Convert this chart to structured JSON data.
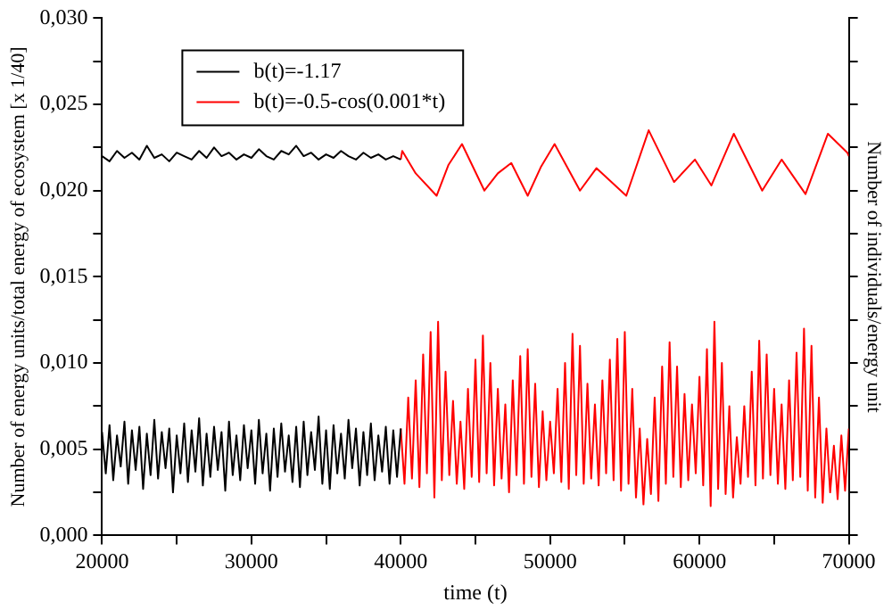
{
  "chart_data": {
    "type": "line",
    "xlabel": "time (t)",
    "ylabel": "Number of energy units/total energy of ecosystem [x 1/40]",
    "y2label": "Number of individuals/energy unit",
    "xlim": [
      20000,
      70000
    ],
    "ylim": [
      0,
      0.03
    ],
    "xticks": [
      20000,
      {
        "value": 25000,
        "label": null
      },
      30000,
      {
        "value": 35000,
        "label": null
      },
      40000,
      {
        "value": 45000,
        "label": null
      },
      50000,
      {
        "value": 55000,
        "label": null
      },
      60000,
      {
        "value": 65000,
        "label": null
      },
      70000
    ],
    "yticks": [
      {
        "value": 0,
        "label": "0,000"
      },
      {
        "value": 0.0025,
        "label": null
      },
      {
        "value": 0.005,
        "label": "0,005"
      },
      {
        "value": 0.0075,
        "label": null
      },
      {
        "value": 0.01,
        "label": "0,010"
      },
      {
        "value": 0.0125,
        "label": null
      },
      {
        "value": 0.015,
        "label": "0,015"
      },
      {
        "value": 0.0175,
        "label": null
      },
      {
        "value": 0.02,
        "label": "0,020"
      },
      {
        "value": 0.0225,
        "label": null
      },
      {
        "value": 0.025,
        "label": "0,025"
      },
      {
        "value": 0.0275,
        "label": null
      },
      {
        "value": 0.03,
        "label": "0,030"
      }
    ],
    "grid": false,
    "legend": "top left",
    "marker": "none",
    "line_style": "solid",
    "series": [
      {
        "name": "b(t)=-1.17",
        "color": "#000000",
        "x": [
          20000,
          20500,
          21000,
          21500,
          22000,
          22500,
          23000,
          23500,
          24000,
          24500,
          25000,
          25500,
          26000,
          26500,
          27000,
          27500,
          28000,
          28500,
          29000,
          29500,
          30000,
          30500,
          31000,
          31500,
          32000,
          32500,
          33000,
          33500,
          34000,
          34500,
          35000,
          35500,
          36000,
          36500,
          37000,
          37500,
          38000,
          38500,
          39000,
          39500,
          40000
        ],
        "values": [
          0.022,
          0.0217,
          0.0223,
          0.0219,
          0.0222,
          0.0218,
          0.0226,
          0.0219,
          0.0221,
          0.0217,
          0.0222,
          0.022,
          0.0218,
          0.0223,
          0.0219,
          0.0225,
          0.022,
          0.0222,
          0.0218,
          0.0221,
          0.0219,
          0.0224,
          0.022,
          0.0218,
          0.0223,
          0.0221,
          0.0226,
          0.022,
          0.0222,
          0.0218,
          0.0221,
          0.0219,
          0.0223,
          0.022,
          0.0218,
          0.0222,
          0.0219,
          0.0221,
          0.0218,
          0.022,
          0.0218
        ]
      },
      {
        "color": "#000000",
        "x": [
          20000,
          20250,
          20500,
          20750,
          21000,
          21250,
          21500,
          21750,
          22000,
          22250,
          22500,
          22750,
          23000,
          23250,
          23500,
          23750,
          24000,
          24250,
          24500,
          24750,
          25000,
          25250,
          25500,
          25750,
          26000,
          26250,
          26500,
          26750,
          27000,
          27250,
          27500,
          27750,
          28000,
          28250,
          28500,
          28750,
          29000,
          29250,
          29500,
          29750,
          30000,
          30250,
          30500,
          30750,
          31000,
          31250,
          31500,
          31750,
          32000,
          32250,
          32500,
          32750,
          33000,
          33250,
          33500,
          33750,
          34000,
          34250,
          34500,
          34750,
          35000,
          35250,
          35500,
          35750,
          36000,
          36250,
          36500,
          36750,
          37000,
          37250,
          37500,
          37750,
          38000,
          38250,
          38500,
          38750,
          39000,
          39250,
          39500,
          39750,
          40000
        ],
        "values": [
          0.006,
          0.0036,
          0.0064,
          0.0032,
          0.0058,
          0.004,
          0.0066,
          0.003,
          0.0061,
          0.0038,
          0.0063,
          0.0027,
          0.0059,
          0.0035,
          0.0067,
          0.0033,
          0.006,
          0.0039,
          0.0062,
          0.0025,
          0.0058,
          0.0036,
          0.0065,
          0.0031,
          0.0061,
          0.0037,
          0.0068,
          0.0029,
          0.0059,
          0.0034,
          0.0063,
          0.0038,
          0.006,
          0.0026,
          0.0066,
          0.0035,
          0.0058,
          0.0032,
          0.0064,
          0.0039,
          0.0061,
          0.003,
          0.0067,
          0.0036,
          0.0059,
          0.0026,
          0.0062,
          0.0034,
          0.0065,
          0.0037,
          0.0058,
          0.0031,
          0.0063,
          0.0028,
          0.0066,
          0.0035,
          0.006,
          0.0038,
          0.0069,
          0.003,
          0.0061,
          0.0027,
          0.0064,
          0.0036,
          0.0059,
          0.0033,
          0.0067,
          0.0039,
          0.0062,
          0.0029,
          0.006,
          0.0035,
          0.0065,
          0.0032,
          0.0058,
          0.0037,
          0.0063,
          0.003,
          0.0061,
          0.0034,
          0.0062
        ]
      },
      {
        "name": "b(t)=-0.5-cos(0.001*t)",
        "color": "#ff0000",
        "x": [
          40000,
          40100,
          41000,
          42400,
          43200,
          44100,
          45600,
          46500,
          47400,
          48500,
          49400,
          50300,
          52000,
          53100,
          55100,
          56600,
          58300,
          59700,
          60800,
          62300,
          64200,
          65500,
          67100,
          68600,
          69900,
          70000
        ],
        "values": [
          0.0218,
          0.0223,
          0.021,
          0.0197,
          0.0215,
          0.0227,
          0.02,
          0.021,
          0.0216,
          0.0197,
          0.0214,
          0.0227,
          0.02,
          0.0213,
          0.0197,
          0.0235,
          0.0205,
          0.0218,
          0.0203,
          0.0233,
          0.02,
          0.0218,
          0.0198,
          0.0233,
          0.0222,
          0.022
        ]
      },
      {
        "color": "#ff0000",
        "x": [
          40000,
          40250,
          40500,
          40750,
          41000,
          41250,
          41500,
          41750,
          42000,
          42250,
          42500,
          42750,
          43000,
          43250,
          43500,
          43750,
          44000,
          44250,
          44500,
          44750,
          45000,
          45250,
          45500,
          45750,
          46000,
          46250,
          46500,
          46750,
          47000,
          47250,
          47500,
          47750,
          48000,
          48250,
          48500,
          48750,
          49000,
          49250,
          49500,
          49750,
          50000,
          50250,
          50500,
          50750,
          51000,
          51250,
          51500,
          51750,
          52000,
          52250,
          52500,
          52750,
          53000,
          53250,
          53500,
          53750,
          54000,
          54250,
          54500,
          54750,
          55000,
          55250,
          55500,
          55750,
          56000,
          56250,
          56500,
          56750,
          57000,
          57250,
          57500,
          57750,
          58000,
          58250,
          58500,
          58750,
          59000,
          59250,
          59500,
          59750,
          60000,
          60250,
          60500,
          60750,
          61000,
          61250,
          61500,
          61750,
          62000,
          62250,
          62500,
          62750,
          63000,
          63250,
          63500,
          63750,
          64000,
          64250,
          64500,
          64750,
          65000,
          65250,
          65500,
          65750,
          66000,
          66250,
          66500,
          66750,
          67000,
          67250,
          67500,
          67750,
          68000,
          68250,
          68500,
          68750,
          69000,
          69250,
          69500,
          69750,
          70000
        ],
        "values": [
          0.0062,
          0.003,
          0.008,
          0.0033,
          0.009,
          0.0028,
          0.0105,
          0.0036,
          0.0118,
          0.0022,
          0.0124,
          0.0032,
          0.0095,
          0.0035,
          0.0078,
          0.003,
          0.0066,
          0.0027,
          0.0085,
          0.0034,
          0.0102,
          0.0031,
          0.0116,
          0.0036,
          0.01,
          0.0029,
          0.0085,
          0.0033,
          0.0076,
          0.0025,
          0.009,
          0.0035,
          0.0104,
          0.003,
          0.0108,
          0.0034,
          0.0088,
          0.0028,
          0.0072,
          0.0032,
          0.0066,
          0.0036,
          0.0085,
          0.0031,
          0.01,
          0.0027,
          0.0117,
          0.0035,
          0.011,
          0.003,
          0.0088,
          0.0033,
          0.0076,
          0.0029,
          0.009,
          0.0036,
          0.0102,
          0.0032,
          0.0114,
          0.0026,
          0.0118,
          0.003,
          0.0085,
          0.0022,
          0.0062,
          0.0018,
          0.0056,
          0.0024,
          0.008,
          0.002,
          0.0098,
          0.003,
          0.0112,
          0.0034,
          0.0098,
          0.0028,
          0.0082,
          0.0032,
          0.0076,
          0.0036,
          0.0092,
          0.0029,
          0.0108,
          0.0017,
          0.0124,
          0.0027,
          0.01,
          0.0024,
          0.0075,
          0.0022,
          0.0057,
          0.003,
          0.0075,
          0.0034,
          0.0095,
          0.0029,
          0.0113,
          0.0033,
          0.0105,
          0.0035,
          0.0085,
          0.003,
          0.0076,
          0.0027,
          0.009,
          0.0032,
          0.0106,
          0.0034,
          0.012,
          0.0026,
          0.011,
          0.0022,
          0.008,
          0.0019,
          0.0062,
          0.0025,
          0.0052,
          0.0021,
          0.0058,
          0.0026,
          0.0062
        ]
      }
    ]
  }
}
